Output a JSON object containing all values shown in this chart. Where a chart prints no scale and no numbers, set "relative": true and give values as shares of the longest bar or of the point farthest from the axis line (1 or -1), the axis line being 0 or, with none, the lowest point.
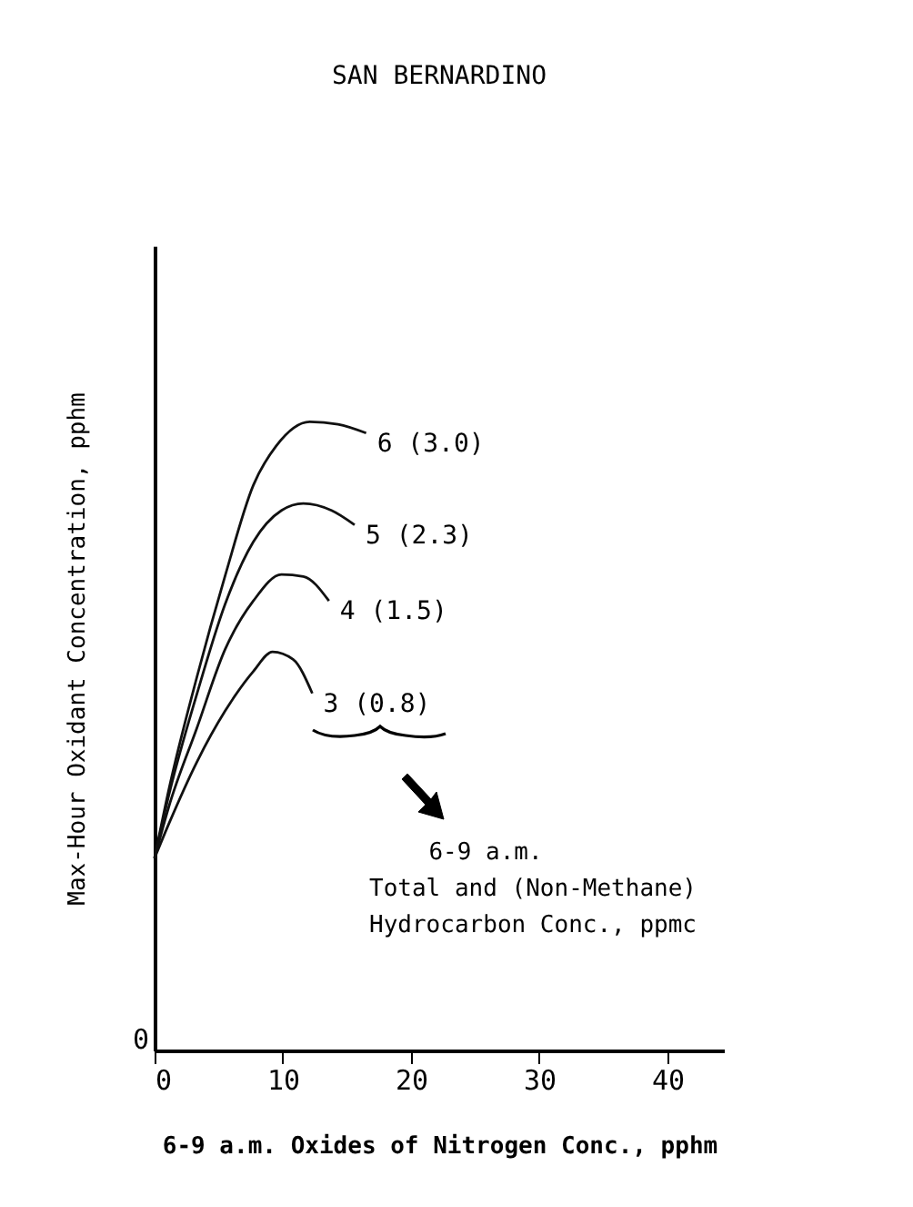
{
  "chart_data": {
    "type": "line",
    "title": "SAN BERNARDINO",
    "xlabel": "6-9 a.m. Oxides of Nitrogen Conc., pphm",
    "ylabel": "Max-Hour Oxidant Concentration, pphm",
    "legend_title": "6-9 a.m.\nTotal and (Non-Methane)\nHydrocarbon Conc., ppmc",
    "relative": true,
    "xlim": [
      0,
      44.4
    ],
    "xticks": [
      0,
      10,
      20,
      30,
      40
    ],
    "legend": false,
    "marker": "none",
    "line_style": "solid",
    "annotations": [
      "0"
    ],
    "series": [
      {
        "name": "6 (3.0)",
        "color": "#111111",
        "x": [
          0,
          1.1,
          3.3,
          5.5,
          7.7,
          9.5,
          12.1,
          14.3,
          16.5
        ],
        "values": [
          0.306,
          0.414,
          0.594,
          0.755,
          0.899,
          0.962,
          1.0,
          0.996,
          0.982
        ]
      },
      {
        "name": "5 (2.3)",
        "color": "#111111",
        "x": [
          0,
          1.1,
          3.3,
          5.5,
          7.7,
          9.9,
          11.6,
          13.8,
          15.6
        ],
        "values": [
          0.306,
          0.405,
          0.567,
          0.71,
          0.809,
          0.859,
          0.87,
          0.859,
          0.836
        ]
      },
      {
        "name": "4 (1.5)",
        "color": "#111111",
        "x": [
          0,
          1.1,
          3.3,
          5.5,
          7.7,
          9.9,
          11.6,
          13.6
        ],
        "values": [
          0.306,
          0.387,
          0.513,
          0.638,
          0.715,
          0.757,
          0.754,
          0.715
        ]
      },
      {
        "name": "3 (0.8)",
        "color": "#111111",
        "x": [
          0,
          1.1,
          3.3,
          5.5,
          7.7,
          9.2,
          10.8,
          12.3
        ],
        "values": [
          0.306,
          0.36,
          0.459,
          0.54,
          0.603,
          0.634,
          0.622,
          0.568
        ]
      }
    ]
  }
}
